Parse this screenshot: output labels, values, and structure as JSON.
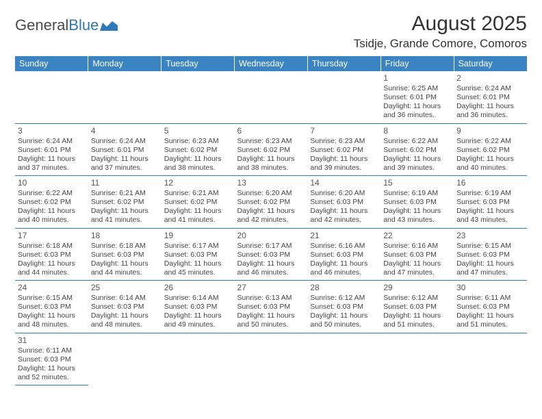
{
  "logo": {
    "text_gray": "General",
    "text_blue": "Blue"
  },
  "title": "August 2025",
  "location": "Tsidje, Grande Comore, Comoros",
  "colors": {
    "header_bg": "#3a84c4",
    "header_text": "#ffffff",
    "border": "#2f78b9",
    "text": "#333333",
    "logo_blue": "#2f78b9"
  },
  "fonts": {
    "title_size_pt": 22,
    "location_size_pt": 13,
    "dayhead_size_pt": 10,
    "cell_size_pt": 8
  },
  "day_headers": [
    "Sunday",
    "Monday",
    "Tuesday",
    "Wednesday",
    "Thursday",
    "Friday",
    "Saturday"
  ],
  "weeks": [
    [
      null,
      null,
      null,
      null,
      null,
      {
        "n": "1",
        "sr": "Sunrise: 6:25 AM",
        "ss": "Sunset: 6:01 PM",
        "d1": "Daylight: 11 hours",
        "d2": "and 36 minutes."
      },
      {
        "n": "2",
        "sr": "Sunrise: 6:24 AM",
        "ss": "Sunset: 6:01 PM",
        "d1": "Daylight: 11 hours",
        "d2": "and 36 minutes."
      }
    ],
    [
      {
        "n": "3",
        "sr": "Sunrise: 6:24 AM",
        "ss": "Sunset: 6:01 PM",
        "d1": "Daylight: 11 hours",
        "d2": "and 37 minutes."
      },
      {
        "n": "4",
        "sr": "Sunrise: 6:24 AM",
        "ss": "Sunset: 6:01 PM",
        "d1": "Daylight: 11 hours",
        "d2": "and 37 minutes."
      },
      {
        "n": "5",
        "sr": "Sunrise: 6:23 AM",
        "ss": "Sunset: 6:02 PM",
        "d1": "Daylight: 11 hours",
        "d2": "and 38 minutes."
      },
      {
        "n": "6",
        "sr": "Sunrise: 6:23 AM",
        "ss": "Sunset: 6:02 PM",
        "d1": "Daylight: 11 hours",
        "d2": "and 38 minutes."
      },
      {
        "n": "7",
        "sr": "Sunrise: 6:23 AM",
        "ss": "Sunset: 6:02 PM",
        "d1": "Daylight: 11 hours",
        "d2": "and 39 minutes."
      },
      {
        "n": "8",
        "sr": "Sunrise: 6:22 AM",
        "ss": "Sunset: 6:02 PM",
        "d1": "Daylight: 11 hours",
        "d2": "and 39 minutes."
      },
      {
        "n": "9",
        "sr": "Sunrise: 6:22 AM",
        "ss": "Sunset: 6:02 PM",
        "d1": "Daylight: 11 hours",
        "d2": "and 40 minutes."
      }
    ],
    [
      {
        "n": "10",
        "sr": "Sunrise: 6:22 AM",
        "ss": "Sunset: 6:02 PM",
        "d1": "Daylight: 11 hours",
        "d2": "and 40 minutes."
      },
      {
        "n": "11",
        "sr": "Sunrise: 6:21 AM",
        "ss": "Sunset: 6:02 PM",
        "d1": "Daylight: 11 hours",
        "d2": "and 41 minutes."
      },
      {
        "n": "12",
        "sr": "Sunrise: 6:21 AM",
        "ss": "Sunset: 6:02 PM",
        "d1": "Daylight: 11 hours",
        "d2": "and 41 minutes."
      },
      {
        "n": "13",
        "sr": "Sunrise: 6:20 AM",
        "ss": "Sunset: 6:02 PM",
        "d1": "Daylight: 11 hours",
        "d2": "and 42 minutes."
      },
      {
        "n": "14",
        "sr": "Sunrise: 6:20 AM",
        "ss": "Sunset: 6:03 PM",
        "d1": "Daylight: 11 hours",
        "d2": "and 42 minutes."
      },
      {
        "n": "15",
        "sr": "Sunrise: 6:19 AM",
        "ss": "Sunset: 6:03 PM",
        "d1": "Daylight: 11 hours",
        "d2": "and 43 minutes."
      },
      {
        "n": "16",
        "sr": "Sunrise: 6:19 AM",
        "ss": "Sunset: 6:03 PM",
        "d1": "Daylight: 11 hours",
        "d2": "and 43 minutes."
      }
    ],
    [
      {
        "n": "17",
        "sr": "Sunrise: 6:18 AM",
        "ss": "Sunset: 6:03 PM",
        "d1": "Daylight: 11 hours",
        "d2": "and 44 minutes."
      },
      {
        "n": "18",
        "sr": "Sunrise: 6:18 AM",
        "ss": "Sunset: 6:03 PM",
        "d1": "Daylight: 11 hours",
        "d2": "and 44 minutes."
      },
      {
        "n": "19",
        "sr": "Sunrise: 6:17 AM",
        "ss": "Sunset: 6:03 PM",
        "d1": "Daylight: 11 hours",
        "d2": "and 45 minutes."
      },
      {
        "n": "20",
        "sr": "Sunrise: 6:17 AM",
        "ss": "Sunset: 6:03 PM",
        "d1": "Daylight: 11 hours",
        "d2": "and 46 minutes."
      },
      {
        "n": "21",
        "sr": "Sunrise: 6:16 AM",
        "ss": "Sunset: 6:03 PM",
        "d1": "Daylight: 11 hours",
        "d2": "and 46 minutes."
      },
      {
        "n": "22",
        "sr": "Sunrise: 6:16 AM",
        "ss": "Sunset: 6:03 PM",
        "d1": "Daylight: 11 hours",
        "d2": "and 47 minutes."
      },
      {
        "n": "23",
        "sr": "Sunrise: 6:15 AM",
        "ss": "Sunset: 6:03 PM",
        "d1": "Daylight: 11 hours",
        "d2": "and 47 minutes."
      }
    ],
    [
      {
        "n": "24",
        "sr": "Sunrise: 6:15 AM",
        "ss": "Sunset: 6:03 PM",
        "d1": "Daylight: 11 hours",
        "d2": "and 48 minutes."
      },
      {
        "n": "25",
        "sr": "Sunrise: 6:14 AM",
        "ss": "Sunset: 6:03 PM",
        "d1": "Daylight: 11 hours",
        "d2": "and 48 minutes."
      },
      {
        "n": "26",
        "sr": "Sunrise: 6:14 AM",
        "ss": "Sunset: 6:03 PM",
        "d1": "Daylight: 11 hours",
        "d2": "and 49 minutes."
      },
      {
        "n": "27",
        "sr": "Sunrise: 6:13 AM",
        "ss": "Sunset: 6:03 PM",
        "d1": "Daylight: 11 hours",
        "d2": "and 50 minutes."
      },
      {
        "n": "28",
        "sr": "Sunrise: 6:12 AM",
        "ss": "Sunset: 6:03 PM",
        "d1": "Daylight: 11 hours",
        "d2": "and 50 minutes."
      },
      {
        "n": "29",
        "sr": "Sunrise: 6:12 AM",
        "ss": "Sunset: 6:03 PM",
        "d1": "Daylight: 11 hours",
        "d2": "and 51 minutes."
      },
      {
        "n": "30",
        "sr": "Sunrise: 6:11 AM",
        "ss": "Sunset: 6:03 PM",
        "d1": "Daylight: 11 hours",
        "d2": "and 51 minutes."
      }
    ],
    [
      {
        "n": "31",
        "sr": "Sunrise: 6:11 AM",
        "ss": "Sunset: 6:03 PM",
        "d1": "Daylight: 11 hours",
        "d2": "and 52 minutes."
      },
      null,
      null,
      null,
      null,
      null,
      null
    ]
  ]
}
